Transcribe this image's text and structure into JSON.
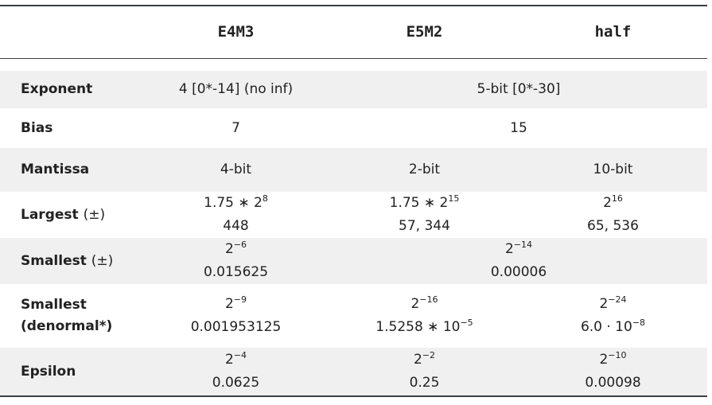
{
  "header": {
    "columns": [
      "E4M3",
      "E5M2",
      "half"
    ]
  },
  "rows": [
    {
      "label": "Exponent",
      "cells": [
        {
          "lines": [
            {
              "text": "4 [0*-14] (no inf)"
            }
          ]
        },
        {
          "lines": [
            {
              "text": "5-bit [0*-30]"
            }
          ]
        },
        null
      ]
    },
    {
      "label": "Bias",
      "cells": [
        {
          "lines": [
            {
              "text": "7"
            }
          ]
        },
        {
          "lines": [
            {
              "text": "15"
            }
          ]
        },
        null
      ]
    },
    {
      "label": "Mantissa",
      "cells": [
        {
          "lines": [
            {
              "text": "4-bit"
            }
          ]
        },
        {
          "lines": [
            {
              "text": "2-bit"
            }
          ]
        },
        {
          "lines": [
            {
              "text": "10-bit"
            }
          ]
        }
      ]
    },
    {
      "label": "Largest",
      "note": "(±)",
      "cells": [
        {
          "lines": [
            {
              "text": "1.75 ∗ 2",
              "sup": "8"
            },
            {
              "text": "448"
            }
          ]
        },
        {
          "lines": [
            {
              "text": "1.75 ∗ 2",
              "sup": "15"
            },
            {
              "text": "57, 344"
            }
          ]
        },
        {
          "lines": [
            {
              "text": "2",
              "sup": "16"
            },
            {
              "text": "65, 536"
            }
          ]
        }
      ]
    },
    {
      "label": "Smallest",
      "note": "(±)",
      "cells": [
        {
          "lines": [
            {
              "text": "2",
              "sup": "−6"
            },
            {
              "text": "0.015625"
            }
          ]
        },
        {
          "lines": [
            {
              "text": "2",
              "sup": "−14"
            },
            {
              "text": "0.00006"
            }
          ]
        },
        null
      ]
    },
    {
      "label": "Smallest (denormal*)",
      "cells": [
        {
          "lines": [
            {
              "text": "2",
              "sup": "−9"
            },
            {
              "text": "0.001953125"
            }
          ]
        },
        {
          "lines": [
            {
              "text": "2",
              "sup": "−16"
            },
            {
              "text": "1.5258 ∗ 10",
              "sup": "−5"
            }
          ]
        },
        {
          "lines": [
            {
              "text": "2",
              "sup": "−24"
            },
            {
              "text": "6.0 · 10",
              "sup": "−8"
            }
          ]
        }
      ]
    },
    {
      "label": "Epsilon",
      "cells": [
        {
          "lines": [
            {
              "text": "2",
              "sup": "−4"
            },
            {
              "text": "0.0625"
            }
          ]
        },
        {
          "lines": [
            {
              "text": "2",
              "sup": "−2"
            },
            {
              "text": "0.25"
            }
          ]
        },
        {
          "lines": [
            {
              "text": "2",
              "sup": "−10"
            },
            {
              "text": "0.00098"
            }
          ]
        }
      ]
    }
  ]
}
